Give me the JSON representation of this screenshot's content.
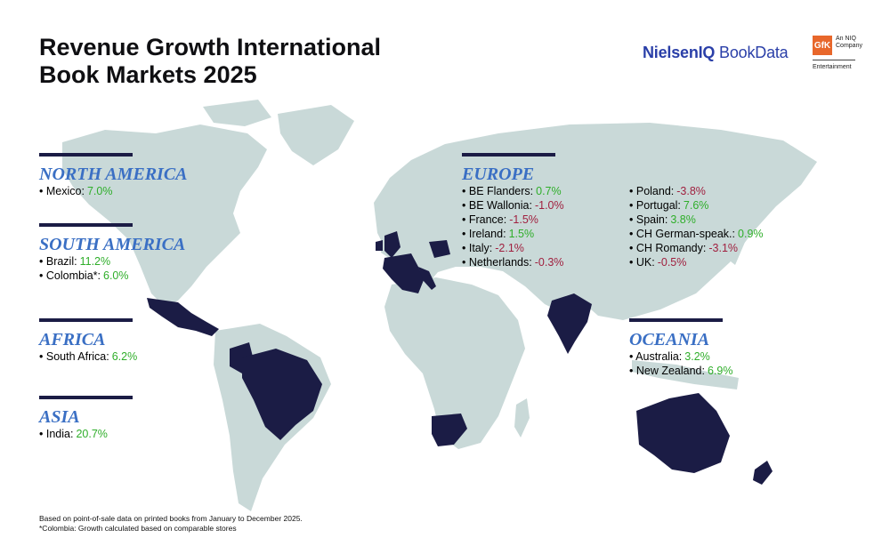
{
  "title": {
    "line1": "Revenue Growth International",
    "line2": "Book Markets 2025"
  },
  "brand": {
    "nielsen": "NielsenIQ",
    "bookdata": "BookData",
    "gfk": "GfK",
    "gfk_sub1": "An NIQ",
    "gfk_sub2": "Company",
    "gfk_entertainment": "Entertainment"
  },
  "colors": {
    "land": "#c9d9d8",
    "highlight": "#1b1c45",
    "heading": "#3a6fc4",
    "positive": "#2fae2a",
    "negative": "#a0203f"
  },
  "regions": {
    "north_america": {
      "name": "NORTH AMERICA",
      "items": [
        {
          "label": "Mexico:",
          "value": "7.0%"
        }
      ]
    },
    "south_america": {
      "name": "SOUTH AMERICA",
      "items": [
        {
          "label": "Brazil:",
          "value": "11.2%"
        },
        {
          "label": "Colombia*:",
          "value": "6.0%"
        }
      ]
    },
    "africa": {
      "name": "AFRICA",
      "items": [
        {
          "label": "South Africa:",
          "value": "6.2%"
        }
      ]
    },
    "asia": {
      "name": "ASIA",
      "items": [
        {
          "label": "India:",
          "value": "20.7%"
        }
      ]
    },
    "europe": {
      "name": "EUROPE",
      "col1": [
        {
          "label": "BE Flanders:",
          "value": "0.7%"
        },
        {
          "label": "BE Wallonia:",
          "value": "-1.0%"
        },
        {
          "label": "France:",
          "value": "-1.5%"
        },
        {
          "label": "Ireland:",
          "value": "1.5%"
        },
        {
          "label": "Italy:",
          "value": "-2.1%"
        },
        {
          "label": "Netherlands:",
          "value": "-0.3%"
        }
      ],
      "col2": [
        {
          "label": "Poland:",
          "value": "-3.8%"
        },
        {
          "label": "Portugal:",
          "value": "7.6%"
        },
        {
          "label": "Spain:",
          "value": "3.8%"
        },
        {
          "label": "CH German-speak.:",
          "value": "0.9%"
        },
        {
          "label": "CH Romandy:",
          "value": "-3.1%"
        },
        {
          "label": "UK:",
          "value": "-0.5%"
        }
      ]
    },
    "oceania": {
      "name": "OCEANIA",
      "items": [
        {
          "label": "Australia:",
          "value": "3.2%"
        },
        {
          "label": "New Zealand:",
          "value": "6.9%"
        }
      ]
    }
  },
  "footnote": {
    "line1": "Based on point-of-sale data on printed books from January to December 2025.",
    "line2": "*Colombia: Growth calculated based on comparable stores"
  }
}
